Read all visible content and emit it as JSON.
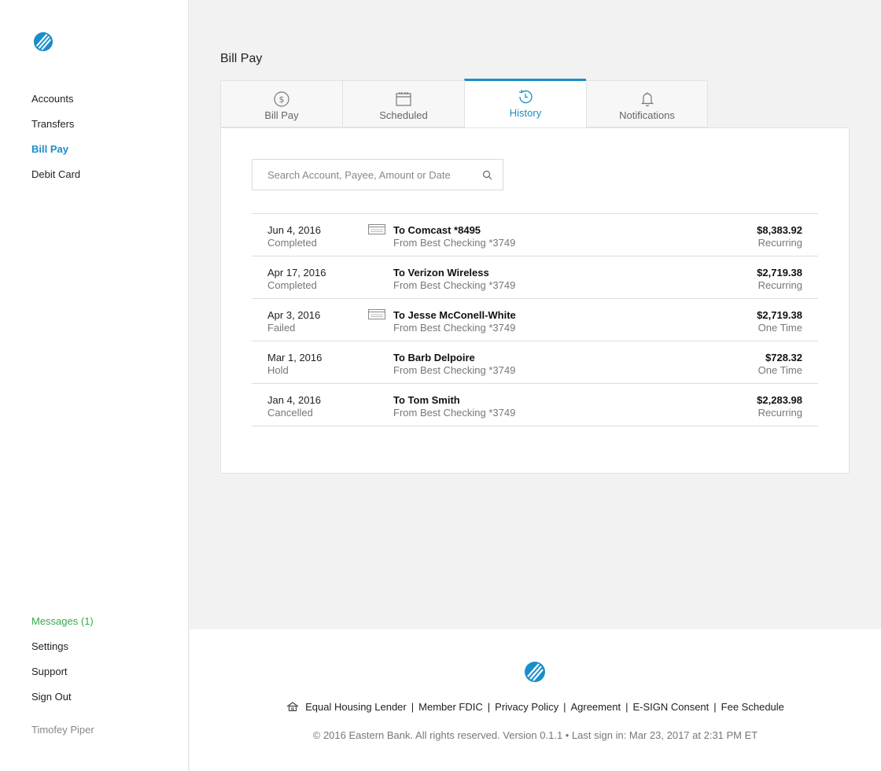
{
  "brand": {
    "accent": "#1a8ec9",
    "messages_color": "#3aa84a",
    "logo_icon": "eastern-bank-logo"
  },
  "sidebar": {
    "nav": [
      {
        "label": "Accounts",
        "active": false
      },
      {
        "label": "Transfers",
        "active": false
      },
      {
        "label": "Bill Pay",
        "active": true
      },
      {
        "label": "Debit Card",
        "active": false
      }
    ],
    "bottom": {
      "messages": "Messages (1)",
      "settings": "Settings",
      "support": "Support",
      "sign_out": "Sign Out"
    },
    "user_name": "Timofey Piper"
  },
  "page": {
    "title": "Bill Pay"
  },
  "tabs": [
    {
      "label": "Bill Pay",
      "icon": "dollar-circle-icon",
      "active": false
    },
    {
      "label": "Scheduled",
      "icon": "calendar-icon",
      "active": false
    },
    {
      "label": "History",
      "icon": "history-icon",
      "active": true
    },
    {
      "label": "Notifications",
      "icon": "bell-icon",
      "active": false
    }
  ],
  "search": {
    "placeholder": "Search Account, Payee, Amount or Date"
  },
  "history": [
    {
      "date": "Jun 4, 2016",
      "status": "Completed",
      "check": true,
      "payee": "To Comcast *8495",
      "from": "From Best Checking *3749",
      "amount": "$8,383.92",
      "frequency": "Recurring"
    },
    {
      "date": "Apr 17, 2016",
      "status": "Completed",
      "check": false,
      "payee": "To Verizon Wireless",
      "from": "From Best Checking *3749",
      "amount": "$2,719.38",
      "frequency": "Recurring"
    },
    {
      "date": "Apr 3, 2016",
      "status": "Failed",
      "check": true,
      "payee": "To Jesse McConell-White",
      "from": "From Best Checking *3749",
      "amount": "$2,719.38",
      "frequency": "One Time"
    },
    {
      "date": "Mar 1, 2016",
      "status": "Hold",
      "check": false,
      "payee": "To Barb Delpoire",
      "from": "From Best Checking *3749",
      "amount": "$728.32",
      "frequency": "One Time"
    },
    {
      "date": "Jan 4, 2016",
      "status": "Cancelled",
      "check": false,
      "payee": "To Tom Smith",
      "from": "From Best Checking *3749",
      "amount": "$2,283.98",
      "frequency": "Recurring"
    }
  ],
  "footer": {
    "links": [
      "Equal Housing Lender",
      "Member FDIC",
      "Privacy Policy",
      "Agreement",
      "E-SIGN Consent",
      "Fee Schedule"
    ],
    "copyright": "© 2016 Eastern Bank. All rights reserved. Version 0.1.1 • Last sign in: Mar 23, 2017 at 2:31 PM ET"
  }
}
